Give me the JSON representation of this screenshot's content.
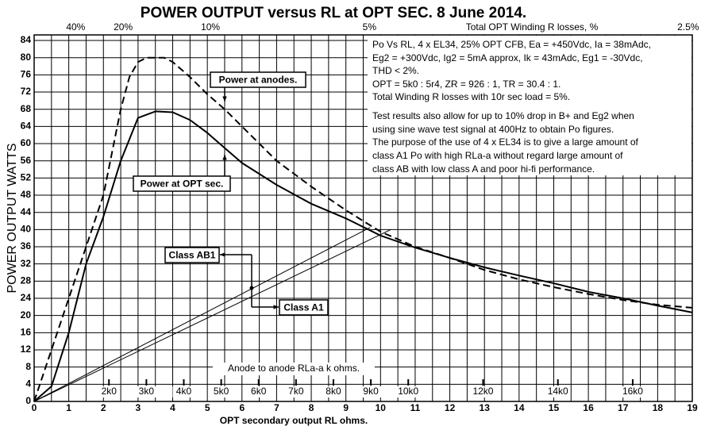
{
  "chart_data": {
    "type": "line",
    "title": "POWER OUTPUT versus RL at OPT SEC. 8 June 2014.",
    "x_label": "OPT secondary output RL ohms.",
    "y_label": "POWER OUTPUT WATTS",
    "x2_label": "Total OPT Winding R losses, %",
    "x2ticks": [
      {
        "value": 1.2,
        "label": "40%"
      },
      {
        "value": 2.57,
        "label": "20%"
      },
      {
        "value": 5.09,
        "label": "10%"
      },
      {
        "value": 9.68,
        "label": "5%"
      },
      {
        "value": 18.88,
        "label": "2.5%"
      }
    ],
    "inner_axis_label": "Anode to anode RLa-a k ohms.",
    "inner_ticks": [
      {
        "value": 2.16,
        "label": "2k0"
      },
      {
        "value": 3.24,
        "label": "3k0"
      },
      {
        "value": 4.32,
        "label": "4k0"
      },
      {
        "value": 5.4,
        "label": "5k0"
      },
      {
        "value": 6.48,
        "label": "6k0"
      },
      {
        "value": 7.56,
        "label": "7k0"
      },
      {
        "value": 8.64,
        "label": "8k0"
      },
      {
        "value": 9.72,
        "label": "9k0"
      },
      {
        "value": 10.8,
        "label": "10k0"
      },
      {
        "value": 12.96,
        "label": "12k0"
      },
      {
        "value": 15.12,
        "label": "14k0"
      },
      {
        "value": 17.28,
        "label": "16k0"
      }
    ],
    "notes": [
      "Po Vs RL, 4 x EL34, 25% OPT CFB, Ea = +450Vdc, Ia = 38mAdc,",
      "Eg2 = +300Vdc, Ig2 = 5mA approx, Ik = 43mAdc, Eg1 = -30Vdc,",
      "THD < 2%.",
      "OPT = 5k0 : 5r4, ZR = 926 : 1, TR = 30.4 : 1.",
      "Total Winding R losses with 10r sec load = 5%.",
      "Test results also allow for up to 10% drop in B+ and Eg2 when",
      "using sine wave test signal at 400Hz to obtain Po figures.",
      "The purpose of the use of 4 x EL34 is to give a large amount of",
      "class A1 Po with high RLa-a without regard large amount of",
      "class AB with low class A and poor hi-fi performance."
    ],
    "annotations": [
      "Power at anodes.",
      "Power at OPT sec.",
      "Class AB1",
      "Class A1"
    ],
    "xlim": [
      0,
      19
    ],
    "ylim": [
      0,
      85.3
    ],
    "xticks": [
      0,
      1,
      2,
      3,
      4,
      5,
      6,
      7,
      8,
      9,
      10,
      11,
      12,
      13,
      14,
      15,
      16,
      17,
      18,
      19
    ],
    "yticks": [
      0,
      4,
      8,
      12,
      16,
      20,
      24,
      28,
      32,
      36,
      40,
      44,
      48,
      52,
      56,
      60,
      64,
      68,
      72,
      76,
      80,
      84
    ],
    "xgrid": [
      0,
      0.5,
      1,
      1.5,
      2,
      2.5,
      3,
      3.5,
      4,
      4.5,
      5,
      5.5,
      6,
      6.5,
      7,
      7.5,
      8,
      8.5,
      9,
      9.5,
      10,
      10.5,
      11,
      11.5,
      12,
      12.5,
      13,
      13.5,
      14,
      14.5,
      15,
      15.5,
      16,
      16.5,
      17,
      17.5,
      18,
      18.5,
      19
    ],
    "grid": true,
    "series": [
      {
        "color": "#000000",
        "dash": true,
        "width": 2,
        "x": [
          0,
          0.5,
          1,
          1.5,
          2,
          2.5,
          2.75,
          3,
          3.25,
          3.75,
          4,
          4.5,
          5,
          5.5,
          6,
          7,
          8,
          9,
          10,
          11,
          12,
          13,
          14,
          15,
          16,
          17,
          18,
          19
        ],
        "values": [
          0,
          12,
          24,
          36,
          48,
          68,
          75.5,
          79,
          80,
          80,
          79,
          75.5,
          71.5,
          68,
          64,
          56,
          50,
          44.5,
          39.5,
          36,
          33.4,
          30.6,
          28.4,
          26.6,
          25,
          23.6,
          22.5,
          21.8
        ]
      },
      {
        "color": "#000000",
        "dash": false,
        "width": 2,
        "x": [
          0,
          0.5,
          1,
          1.5,
          2,
          2.5,
          3,
          3.5,
          4,
          4.5,
          5,
          5.5,
          6,
          7,
          8,
          9,
          10,
          11,
          12,
          13,
          14,
          15,
          16,
          17,
          18,
          19
        ],
        "values": [
          0,
          3.5,
          16,
          32,
          43,
          56,
          66,
          67.5,
          67.3,
          65.5,
          62.5,
          59,
          55.5,
          50.4,
          46,
          42.6,
          38.6,
          35.8,
          33.4,
          31.2,
          29.3,
          27.5,
          25.5,
          24,
          22.3,
          20.7
        ]
      },
      {
        "color": "#000000",
        "dash": false,
        "width": 1,
        "x": [
          0,
          9.7
        ],
        "values": [
          0,
          40.5
        ]
      },
      {
        "color": "#000000",
        "dash": false,
        "width": 1,
        "x": [
          0,
          10.3
        ],
        "values": [
          0,
          40
        ]
      }
    ]
  }
}
